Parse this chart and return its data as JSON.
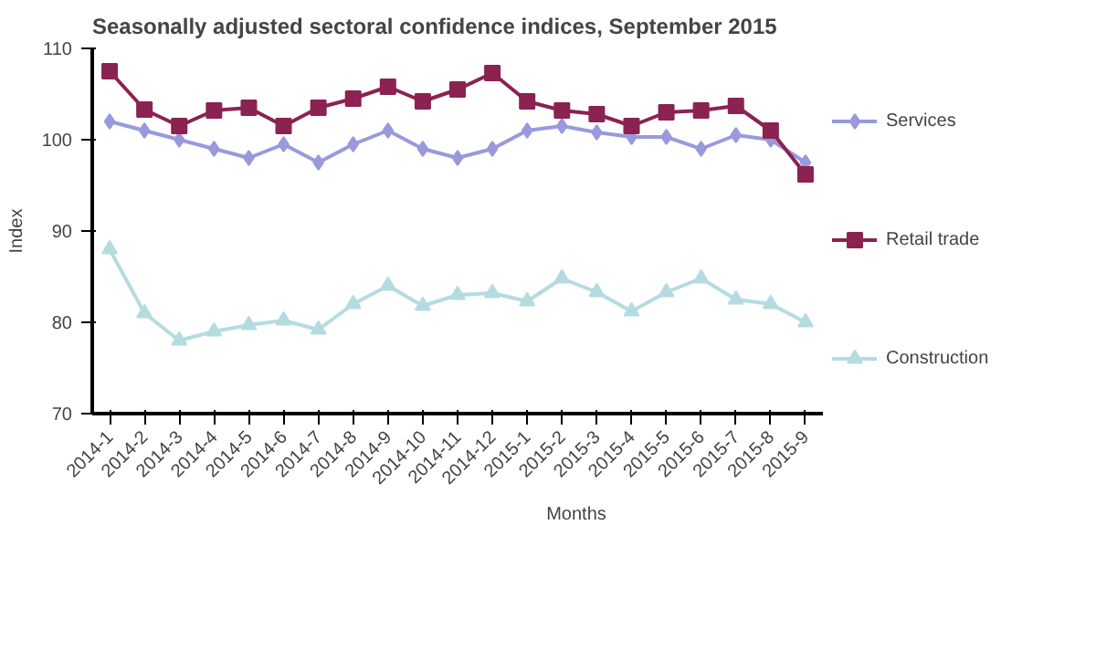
{
  "chart_data": {
    "type": "line",
    "title": "Seasonally adjusted sectoral confidence indices, September 2015",
    "xlabel": "Months",
    "ylabel": "Index",
    "categories": [
      "2014-1",
      "2014-2",
      "2014-3",
      "2014-4",
      "2014-5",
      "2014-6",
      "2014-7",
      "2014-8",
      "2014-9",
      "2014-10",
      "2014-11",
      "2014-12",
      "2015-1",
      "2015-2",
      "2015-3",
      "2015-4",
      "2015-5",
      "2015-6",
      "2015-7",
      "2015-8",
      "2015-9"
    ],
    "series": [
      {
        "name": "Services",
        "color": "#9999dd",
        "marker": "diamond",
        "values": [
          102,
          101,
          100,
          99,
          98,
          99.5,
          97.5,
          99.5,
          101,
          99,
          98,
          99,
          101,
          101.5,
          100.8,
          100.3,
          100.3,
          99,
          100.5,
          100,
          97.5
        ]
      },
      {
        "name": "Retail trade",
        "color": "#8b2252",
        "marker": "square",
        "values": [
          107.5,
          103.3,
          101.5,
          103.2,
          103.5,
          101.5,
          103.5,
          104.5,
          105.8,
          104.2,
          105.5,
          107.3,
          104.2,
          103.2,
          102.8,
          101.5,
          103,
          103.2,
          103.7,
          101,
          96.2
        ]
      },
      {
        "name": "Construction",
        "color": "#b4dce0",
        "marker": "triangle",
        "values": [
          88,
          81,
          78,
          79,
          79.7,
          80.2,
          79.2,
          82,
          84,
          81.8,
          83,
          83.2,
          82.3,
          84.8,
          83.3,
          81.2,
          83.3,
          84.8,
          82.5,
          82,
          80
        ]
      }
    ],
    "ylim": [
      70,
      110
    ],
    "yticks": [
      70,
      80,
      90,
      100,
      110
    ],
    "grid": false,
    "legend": "right"
  }
}
